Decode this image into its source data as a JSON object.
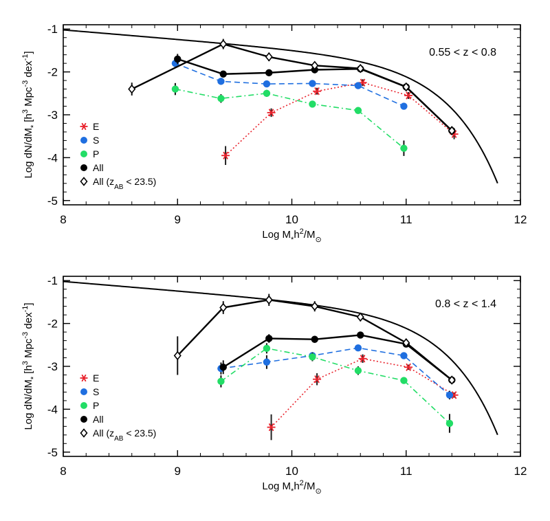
{
  "colors": {
    "E": "#e8202a",
    "S": "#1f6fe0",
    "P": "#22dd66",
    "All": "#000000",
    "AllLim": "#000000",
    "model": "#000000"
  },
  "chart_data": [
    {
      "type": "scatter",
      "redshift_label": "0.55 < z < 0.8",
      "xlabel": "Log M*h²/M⊙",
      "ylabel": "Log dN/dM* [h³ Mpc⁻³ dex⁻¹]",
      "xlim": [
        8,
        12
      ],
      "ylim": [
        -5.1,
        -0.9
      ],
      "xticks": [
        8,
        9,
        10,
        11,
        12
      ],
      "yticks": [
        -5,
        -4,
        -3,
        -2,
        -1
      ],
      "tick_labels_x": [
        "8",
        "9",
        "10",
        "11",
        "12"
      ],
      "tick_labels_y": [
        "-5",
        "-4",
        "-3",
        "-2",
        "-1"
      ],
      "legend": [
        "E",
        "S",
        "P",
        "All",
        "All (z_AB < 23.5)"
      ],
      "legend_items": [
        {
          "label": "E",
          "sub": "",
          "suffix": ""
        },
        {
          "label": "S",
          "sub": "",
          "suffix": ""
        },
        {
          "label": "P",
          "sub": "",
          "suffix": ""
        },
        {
          "label": "All",
          "sub": "",
          "suffix": ""
        },
        {
          "label": "All (z",
          "sub": "AB",
          "suffix": " < 23.5)"
        }
      ],
      "series": [
        {
          "key": "E",
          "marker": "asterisk",
          "line": "dotted",
          "x": [
            9.42,
            9.82,
            10.22,
            10.62,
            11.02,
            11.42
          ],
          "y": [
            -3.95,
            -2.95,
            -2.45,
            -2.25,
            -2.55,
            -3.45
          ],
          "err": [
            0.22,
            0.1,
            0.08,
            0.08,
            0.08,
            0.12
          ]
        },
        {
          "key": "S",
          "marker": "circle",
          "line": "dashed",
          "x": [
            8.98,
            9.38,
            9.78,
            10.18,
            10.58,
            10.98
          ],
          "y": [
            -1.8,
            -2.22,
            -2.28,
            -2.27,
            -2.32,
            -2.8
          ],
          "err": [
            0.1,
            0.08,
            0.06,
            0.06,
            0.06,
            0.08
          ]
        },
        {
          "key": "P",
          "marker": "circle",
          "line": "dashdot",
          "x": [
            8.98,
            9.38,
            9.78,
            10.18,
            10.58,
            10.98
          ],
          "y": [
            -2.4,
            -2.62,
            -2.5,
            -2.75,
            -2.9,
            -3.78
          ],
          "err": [
            0.14,
            0.1,
            0.08,
            0.06,
            0.06,
            0.18
          ]
        },
        {
          "key": "All",
          "marker": "circle",
          "line": "solid",
          "x": [
            9.0,
            9.4,
            9.8,
            10.2,
            10.6,
            11.0,
            11.4
          ],
          "y": [
            -1.7,
            -2.05,
            -2.02,
            -1.95,
            -1.93,
            -2.35,
            -3.37
          ],
          "err": [
            0.12,
            0.06,
            0.05,
            0.05,
            0.05,
            0.06,
            0.1
          ]
        },
        {
          "key": "AllLim",
          "marker": "diamond",
          "line": "solid",
          "x": [
            8.6,
            9.4,
            9.8,
            10.2,
            10.6,
            11.0,
            11.4
          ],
          "y": [
            -2.4,
            -1.35,
            -1.65,
            -1.85,
            -1.92,
            -2.35,
            -3.37
          ],
          "err": [
            0.15,
            0.12,
            0.1,
            0.06,
            0.05,
            0.06,
            0.1
          ]
        }
      ],
      "curve": {
        "phi": -1.68,
        "mstar": 11.0,
        "alpha": -1.22,
        "xmin": 8.0,
        "xmax": 11.8
      }
    },
    {
      "type": "scatter",
      "redshift_label": "0.8 < z < 1.4",
      "xlabel": "Log M*h²/M⊙",
      "ylabel": "Log dN/dM* [h³ Mpc⁻³ dex⁻¹]",
      "xlim": [
        8,
        12
      ],
      "ylim": [
        -5.1,
        -0.9
      ],
      "xticks": [
        8,
        9,
        10,
        11,
        12
      ],
      "yticks": [
        -5,
        -4,
        -3,
        -2,
        -1
      ],
      "tick_labels_x": [
        "8",
        "9",
        "10",
        "11",
        "12"
      ],
      "tick_labels_y": [
        "-5",
        "-4",
        "-3",
        "-2",
        "-1"
      ],
      "legend": [
        "E",
        "S",
        "P",
        "All",
        "All (z_AB < 23.5)"
      ],
      "legend_items": [
        {
          "label": "E",
          "sub": "",
          "suffix": ""
        },
        {
          "label": "S",
          "sub": "",
          "suffix": ""
        },
        {
          "label": "P",
          "sub": "",
          "suffix": ""
        },
        {
          "label": "All",
          "sub": "",
          "suffix": ""
        },
        {
          "label": "All (z",
          "sub": "AB",
          "suffix": " < 23.5)"
        }
      ],
      "series": [
        {
          "key": "E",
          "marker": "asterisk",
          "line": "dotted",
          "x": [
            9.82,
            10.22,
            10.62,
            11.02,
            11.42
          ],
          "y": [
            -4.42,
            -3.3,
            -2.82,
            -3.02,
            -3.67
          ],
          "err": [
            0.3,
            0.14,
            0.1,
            0.06,
            0.06
          ]
        },
        {
          "key": "S",
          "marker": "circle",
          "line": "dashed",
          "x": [
            9.38,
            9.78,
            10.18,
            10.58,
            10.98,
            11.38
          ],
          "y": [
            -3.05,
            -2.9,
            -2.75,
            -2.57,
            -2.75,
            -3.67
          ],
          "err": [
            0.14,
            0.16,
            0.08,
            0.06,
            0.06,
            0.1
          ]
        },
        {
          "key": "P",
          "marker": "circle",
          "line": "dashdot",
          "x": [
            9.38,
            9.78,
            10.18,
            10.58,
            10.98,
            11.38
          ],
          "y": [
            -3.35,
            -2.58,
            -2.78,
            -3.1,
            -3.33,
            -4.33
          ],
          "err": [
            0.14,
            0.12,
            0.1,
            0.1,
            0.06,
            0.22
          ]
        },
        {
          "key": "All",
          "marker": "circle",
          "line": "solid",
          "x": [
            9.4,
            9.8,
            10.2,
            10.6,
            11.0,
            11.4
          ],
          "y": [
            -3.02,
            -2.35,
            -2.37,
            -2.27,
            -2.48,
            -3.32
          ],
          "err": [
            0.16,
            0.1,
            0.08,
            0.06,
            0.06,
            0.08
          ]
        },
        {
          "key": "AllLim",
          "marker": "diamond",
          "line": "solid",
          "x": [
            9.0,
            9.4,
            9.8,
            10.2,
            10.6,
            11.0,
            11.4
          ],
          "y": [
            -2.75,
            -1.63,
            -1.45,
            -1.6,
            -1.85,
            -2.45,
            -3.32
          ],
          "err": [
            0.45,
            0.15,
            0.14,
            0.12,
            0.1,
            0.08,
            0.08
          ]
        }
      ],
      "curve": {
        "phi": -1.68,
        "mstar": 11.0,
        "alpha": -1.22,
        "xmin": 8.0,
        "xmax": 11.8
      }
    }
  ]
}
